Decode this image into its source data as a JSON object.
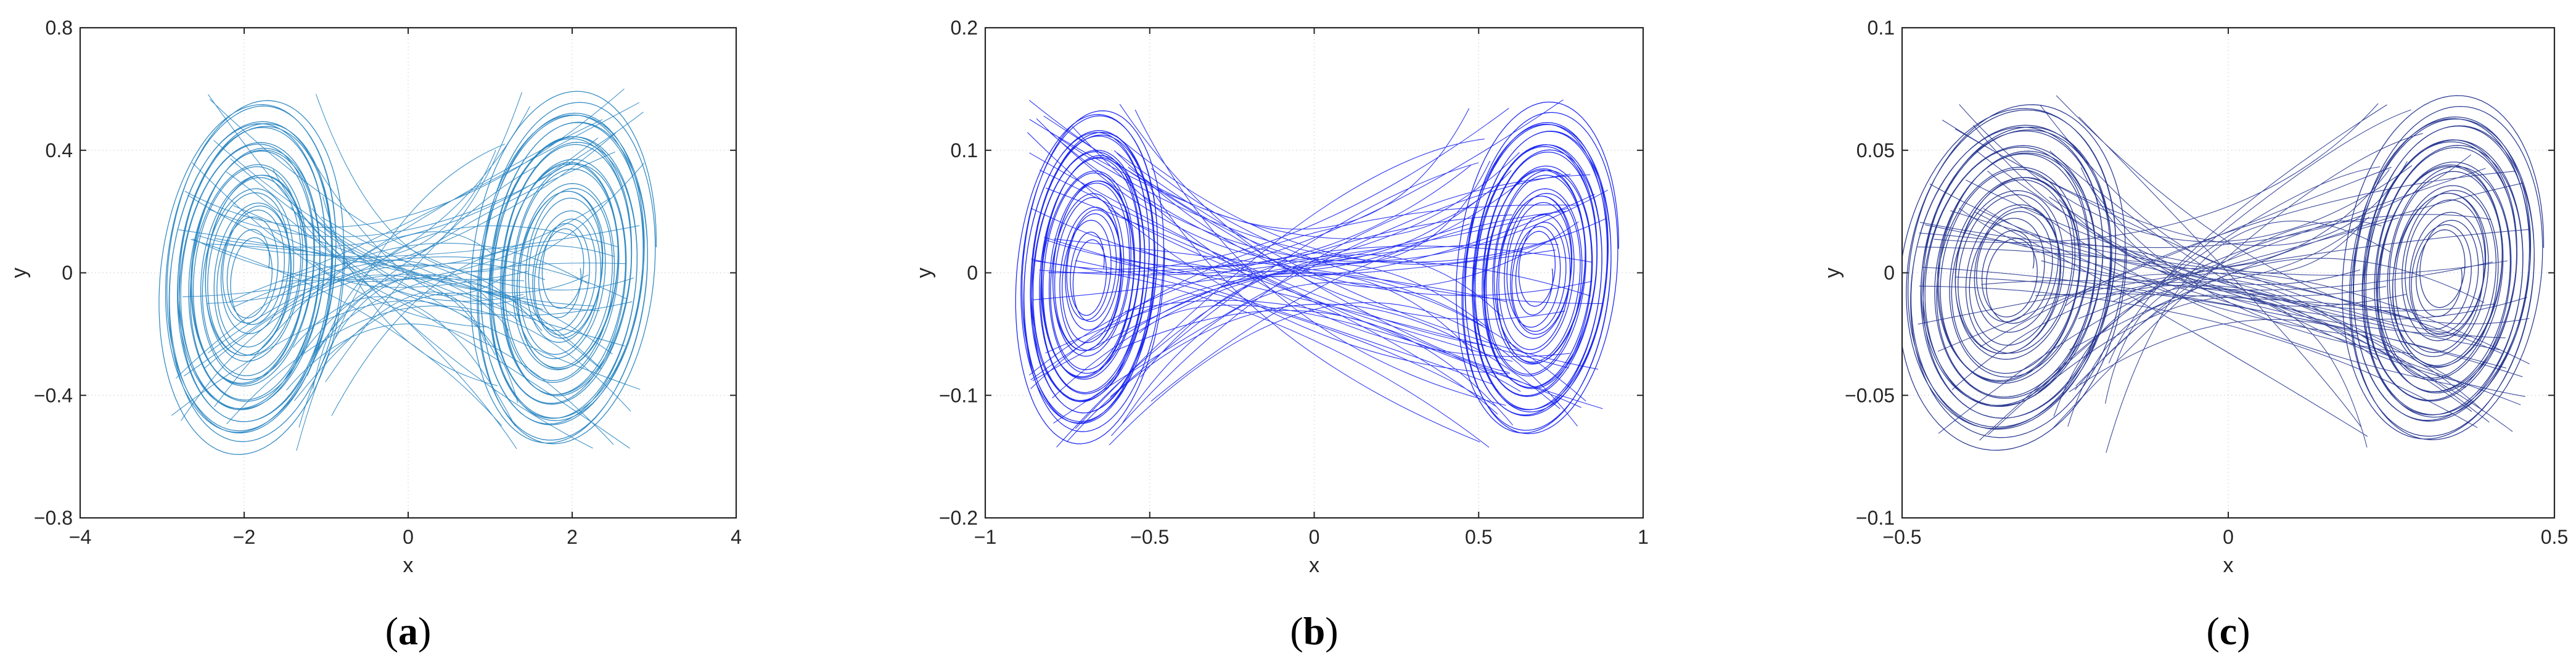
{
  "chart_data": [
    {
      "type": "line",
      "panel_label": "a",
      "xlabel": "x",
      "ylabel": "y",
      "xlim": [
        -4,
        4
      ],
      "ylim": [
        -0.8,
        0.8
      ],
      "xticks": [
        -4,
        -2,
        0,
        2,
        4
      ],
      "yticks": [
        -0.8,
        -0.4,
        0,
        0.4,
        0.8
      ],
      "xtick_labels": [
        "−4",
        "−2",
        "0",
        "2",
        "4"
      ],
      "ytick_labels": [
        "−0.8",
        "−0.4",
        "0",
        "0.4",
        "0.8"
      ],
      "grid": true,
      "color": "#1f7fbf",
      "attractor": {
        "foci": [
          [
            -1.9,
            0.0
          ],
          [
            1.9,
            0.0
          ]
        ],
        "outer_extent": {
          "x_min": -3.0,
          "x_max": 3.0,
          "y_min": -0.68,
          "y_max": 0.68
        }
      }
    },
    {
      "type": "line",
      "panel_label": "b",
      "xlabel": "x",
      "ylabel": "y",
      "xlim": [
        -1,
        1
      ],
      "ylim": [
        -0.2,
        0.2
      ],
      "xticks": [
        -1,
        -0.5,
        0,
        0.5,
        1
      ],
      "yticks": [
        -0.2,
        -0.1,
        0,
        0.1,
        0.2
      ],
      "xtick_labels": [
        "−1",
        "−0.5",
        "0",
        "0.5",
        "1"
      ],
      "ytick_labels": [
        "−0.2",
        "−0.1",
        "0",
        "0.1",
        "0.2"
      ],
      "grid": true,
      "color": "#0a16f0",
      "attractor": {
        "foci": [
          [
            -0.68,
            0.0
          ],
          [
            0.68,
            0.0
          ]
        ],
        "outer_extent": {
          "x_min": -0.9,
          "x_max": 0.92,
          "y_min": -0.16,
          "y_max": 0.16
        }
      }
    },
    {
      "type": "line",
      "panel_label": "c",
      "xlabel": "x",
      "ylabel": "y",
      "xlim": [
        -0.5,
        0.5
      ],
      "ylim": [
        -0.1,
        0.1
      ],
      "xticks": [
        -0.5,
        0,
        0.5
      ],
      "yticks": [
        -0.1,
        -0.05,
        0,
        0.05,
        0.1
      ],
      "xtick_labels": [
        "−0.5",
        "0",
        "0.5"
      ],
      "ytick_labels": [
        "−0.1",
        "−0.05",
        "0",
        "0.05",
        "0.1"
      ],
      "grid": true,
      "color": "#1a2a8a",
      "attractor": {
        "foci": [
          [
            -0.33,
            0.0
          ],
          [
            0.33,
            0.0
          ]
        ],
        "outer_extent": {
          "x_min": -0.5,
          "x_max": 0.48,
          "y_min": -0.07,
          "y_max": 0.083
        }
      }
    }
  ]
}
